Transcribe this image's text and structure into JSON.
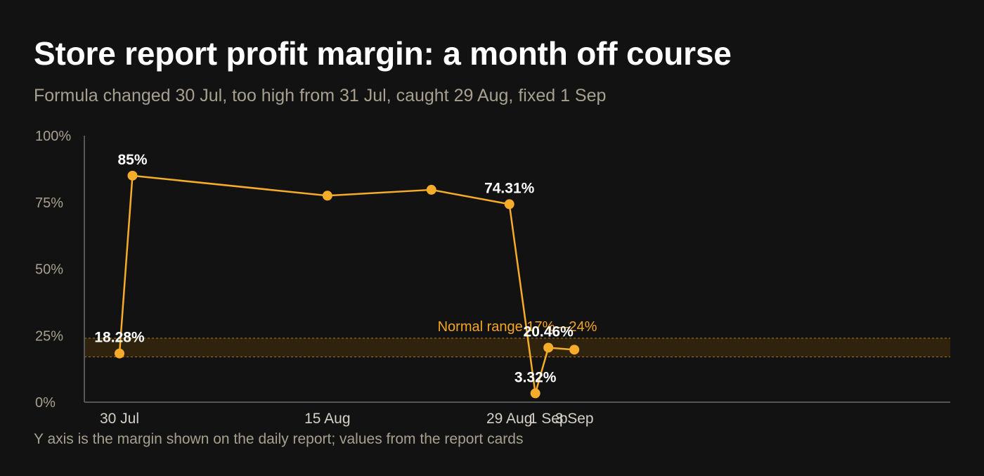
{
  "title": "Store report profit margin: a month off course",
  "subtitle": "Formula changed 30 Jul, too high from 31 Jul, caught 29 Aug, fixed 1 Sep",
  "footnote": "Y axis is the margin shown on the daily report; values from the report cards",
  "colors": {
    "background": "#121212",
    "series": "#f5ac2b",
    "band_fill": "#3a2a0e",
    "band_line": "#b07a1c",
    "axis": "#555555"
  },
  "chart_data": {
    "type": "line",
    "title": "Store report profit margin: a month off course",
    "subtitle": "Formula changed 30 Jul, too high from 31 Jul, caught 29 Aug, fixed 1 Sep",
    "xlabel": "",
    "ylabel": "",
    "ylim": [
      0,
      100
    ],
    "y_ticks": [
      "0%",
      "25%",
      "50%",
      "75%",
      "100%"
    ],
    "x_ticks": [
      "30 Jul",
      "15 Aug",
      "29 Aug",
      "1 Sep",
      "3 Sep"
    ],
    "grid": false,
    "band": {
      "label": "Normal range 17%—24%",
      "low": 17,
      "high": 24
    },
    "series": [
      {
        "points": [
          {
            "x": "2024-07-30",
            "y": 18.28,
            "label": "18.28%"
          },
          {
            "x": "2024-07-31",
            "y": 85,
            "label": "85%"
          },
          {
            "x": "2024-08-15",
            "y": 77.5,
            "label": ""
          },
          {
            "x": "2024-08-23",
            "y": 79.7,
            "label": ""
          },
          {
            "x": "2024-08-29",
            "y": 74.31,
            "label": "74.31%"
          },
          {
            "x": "2024-08-31",
            "y": 3.32,
            "label": "3.32%"
          },
          {
            "x": "2024-09-01",
            "y": 20.46,
            "label": "20.46%"
          },
          {
            "x": "2024-09-03",
            "y": 19.7,
            "label": ""
          }
        ]
      }
    ]
  }
}
